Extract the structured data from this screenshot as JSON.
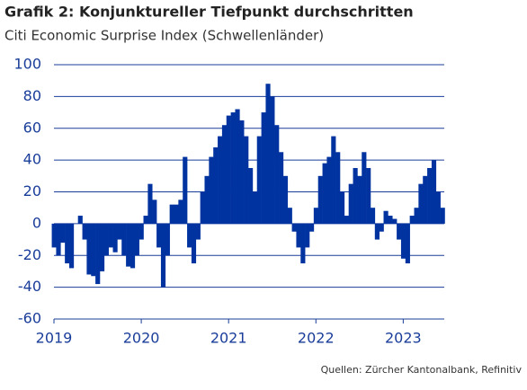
{
  "chart_data": {
    "type": "bar",
    "title": "Grafik 2: Konjunktureller Tiefpunkt durchschritten",
    "subtitle": "Citi Economic Surprise Index (Schwellenländer)",
    "source": "Quellen: Zürcher Kantonalbank, Refinitiv",
    "color": "#0033a0",
    "grid": true,
    "x": [
      2019.0,
      2019.05,
      2019.1,
      2019.15,
      2019.2,
      2019.25,
      2019.3,
      2019.35,
      2019.4,
      2019.45,
      2019.5,
      2019.55,
      2019.6,
      2019.65,
      2019.7,
      2019.75,
      2019.8,
      2019.85,
      2019.9,
      2019.95,
      2020.0,
      2020.05,
      2020.1,
      2020.15,
      2020.2,
      2020.25,
      2020.3,
      2020.35,
      2020.4,
      2020.45,
      2020.5,
      2020.55,
      2020.6,
      2020.65,
      2020.7,
      2020.75,
      2020.8,
      2020.85,
      2020.9,
      2020.95,
      2021.0,
      2021.05,
      2021.1,
      2021.15,
      2021.2,
      2021.25,
      2021.3,
      2021.35,
      2021.4,
      2021.45,
      2021.5,
      2021.55,
      2021.6,
      2021.65,
      2021.7,
      2021.75,
      2021.8,
      2021.85,
      2021.9,
      2021.95,
      2022.0,
      2022.05,
      2022.1,
      2022.15,
      2022.2,
      2022.25,
      2022.3,
      2022.35,
      2022.4,
      2022.45,
      2022.5,
      2022.55,
      2022.6,
      2022.65,
      2022.7,
      2022.75,
      2022.8,
      2022.85,
      2022.9,
      2022.95,
      2023.0,
      2023.05,
      2023.1,
      2023.15,
      2023.2,
      2023.25,
      2023.3,
      2023.35,
      2023.4,
      2023.45
    ],
    "values": [
      -15,
      -20,
      -12,
      -25,
      -28,
      0,
      5,
      -10,
      -32,
      -33,
      -38,
      -30,
      -20,
      -15,
      -18,
      -10,
      -20,
      -27,
      -28,
      -20,
      -10,
      5,
      25,
      15,
      -15,
      -40,
      -20,
      12,
      12,
      15,
      42,
      -15,
      -25,
      -10,
      20,
      30,
      42,
      48,
      55,
      62,
      68,
      70,
      72,
      65,
      55,
      35,
      20,
      55,
      70,
      88,
      80,
      62,
      45,
      30,
      10,
      -5,
      -15,
      -25,
      -15,
      -5,
      10,
      30,
      38,
      42,
      55,
      45,
      20,
      5,
      25,
      35,
      30,
      45,
      35,
      10,
      -10,
      -5,
      8,
      5,
      3,
      -10,
      -22,
      -25,
      5,
      10,
      25,
      30,
      35,
      40,
      20,
      10
    ],
    "xlim": [
      2019,
      2023.47
    ],
    "xticks": [
      2019,
      2020,
      2021,
      2022,
      2023
    ],
    "ylim": [
      -60,
      100
    ],
    "yticks": [
      -60,
      -40,
      -20,
      0,
      20,
      40,
      60,
      80,
      100
    ]
  }
}
